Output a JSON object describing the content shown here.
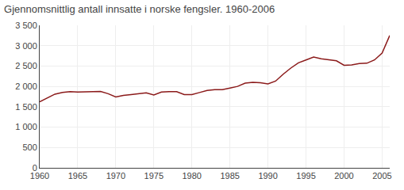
{
  "chart_data": {
    "type": "line",
    "title": "Gjennomsnittlig antall innsatte i norske fengsler. 1960-2006",
    "x": [
      1960,
      1961,
      1962,
      1963,
      1964,
      1965,
      1966,
      1967,
      1968,
      1969,
      1970,
      1971,
      1972,
      1973,
      1974,
      1975,
      1976,
      1977,
      1978,
      1979,
      1980,
      1981,
      1982,
      1983,
      1984,
      1985,
      1986,
      1987,
      1988,
      1989,
      1990,
      1991,
      1992,
      1993,
      1994,
      1995,
      1996,
      1997,
      1998,
      1999,
      2000,
      2001,
      2002,
      2003,
      2004,
      2005,
      2006
    ],
    "values": [
      1620,
      1710,
      1810,
      1850,
      1870,
      1860,
      1860,
      1870,
      1875,
      1820,
      1740,
      1780,
      1800,
      1820,
      1840,
      1790,
      1860,
      1870,
      1870,
      1800,
      1800,
      1850,
      1900,
      1920,
      1920,
      1960,
      2000,
      2080,
      2100,
      2090,
      2060,
      2130,
      2300,
      2450,
      2580,
      2650,
      2720,
      2680,
      2660,
      2630,
      2520,
      2530,
      2560,
      2570,
      2650,
      2820,
      3250
    ],
    "color": "#8B1A1A",
    "xlim": [
      1960,
      2006
    ],
    "xticks": [
      1960,
      1965,
      1970,
      1975,
      1980,
      1985,
      1990,
      1995,
      2000,
      2005
    ],
    "ylim": [
      0,
      3500
    ],
    "yticks": [
      0,
      500,
      {
        "value": 1000,
        "label": "1 000"
      },
      {
        "value": 1500,
        "label": "1 500"
      },
      {
        "value": 2000,
        "label": "2 000"
      },
      {
        "value": 2500,
        "label": "2 500"
      },
      {
        "value": 3000,
        "label": "3 000"
      },
      {
        "value": 3500,
        "label": "3 500"
      }
    ],
    "grid": true
  }
}
